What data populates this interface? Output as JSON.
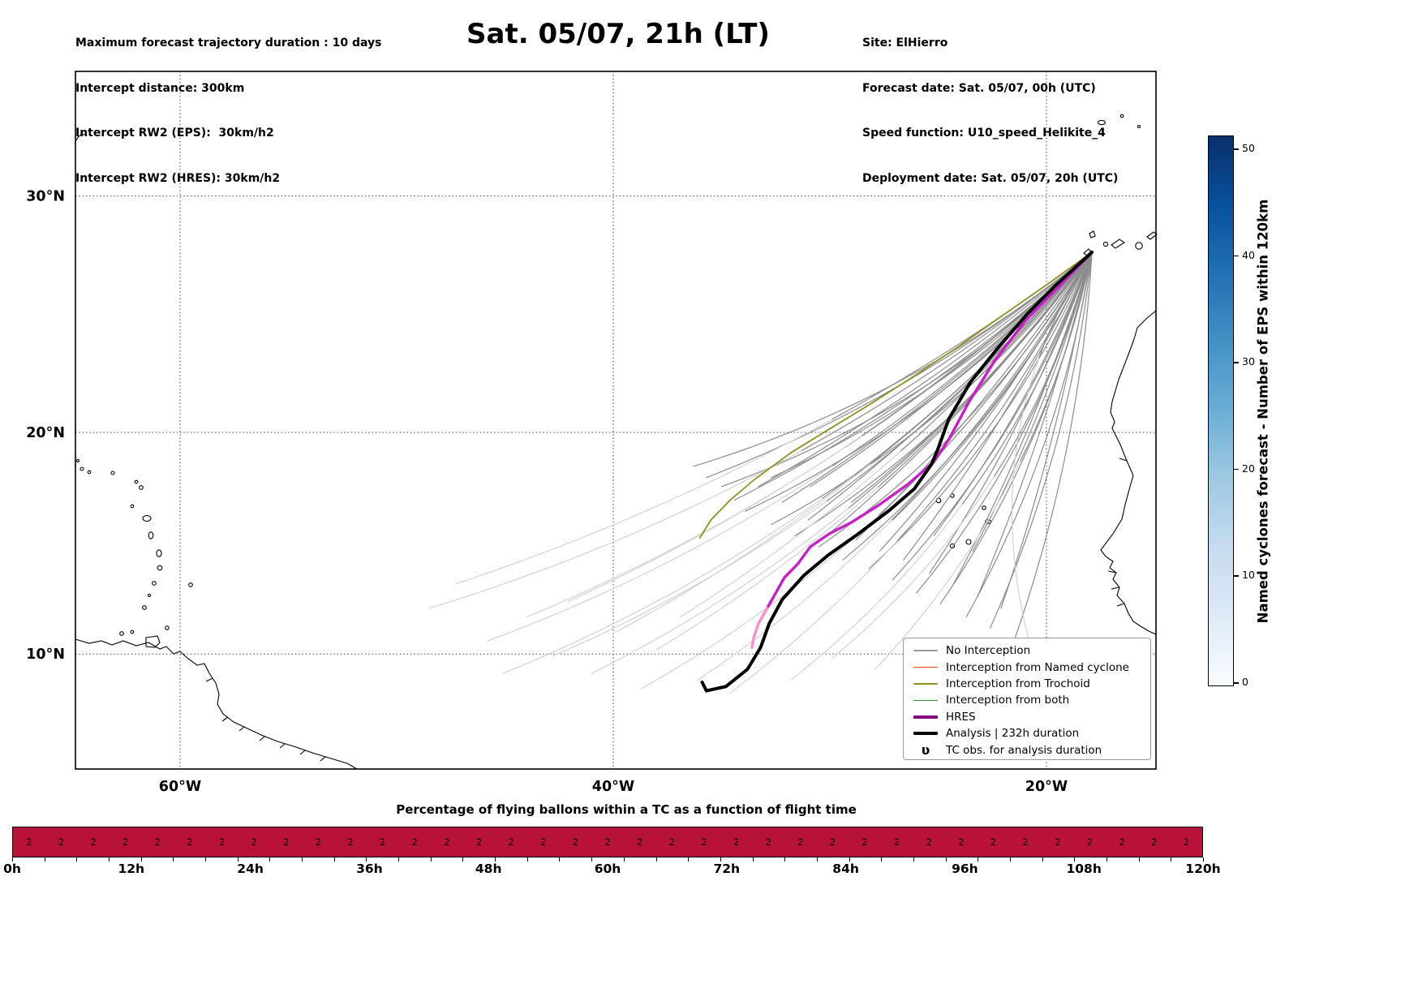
{
  "header": {
    "left_lines": [
      "Maximum forecast trajectory duration : 10 days",
      "Intercept distance: 300km",
      "Intercept RW2 (EPS):  30km/h2",
      "Intercept RW2 (HRES): 30km/h2"
    ],
    "title": "Sat. 05/07, 21h (LT)",
    "right_lines": [
      "Site: ElHierro",
      "Forecast date: Sat. 05/07, 00h (UTC)",
      "Speed function: U10_speed_Helikite_4",
      "Deployment date: Sat. 05/07, 20h (UTC)"
    ]
  },
  "chart_data": {
    "type": "line",
    "projection": "mercator",
    "map_extent_lon_w": [
      65,
      15
    ],
    "map_extent_lat": [
      4.7,
      35
    ],
    "x_ticks": [
      {
        "label": "60°W",
        "lon_w": 60
      },
      {
        "label": "40°W",
        "lon_w": 40
      },
      {
        "label": "20°W",
        "lon_w": 20
      }
    ],
    "y_ticks": [
      {
        "label": "30°N",
        "lat": 30
      },
      {
        "label": "20°N",
        "lat": 20
      },
      {
        "label": "10°N",
        "lat": 10
      }
    ],
    "deployment_site_lonw_lat": [
      17.9,
      27.7
    ],
    "series": {
      "analysis": {
        "label": "Analysis | 232h duration",
        "color": "#000000",
        "width": 4,
        "points": [
          [
            17.9,
            27.7
          ],
          [
            19.6,
            26.3
          ],
          [
            20.9,
            25.1
          ],
          [
            22.3,
            23.6
          ],
          [
            23.5,
            22.2
          ],
          [
            24.5,
            20.6
          ],
          [
            25.0,
            19.3
          ],
          [
            25.3,
            18.6
          ],
          [
            26.1,
            17.5
          ],
          [
            27.3,
            16.5
          ],
          [
            28.8,
            15.4
          ],
          [
            30.1,
            14.5
          ],
          [
            31.2,
            13.6
          ],
          [
            32.2,
            12.5
          ],
          [
            32.8,
            11.4
          ],
          [
            33.2,
            10.3
          ],
          [
            33.8,
            9.3
          ],
          [
            34.8,
            8.5
          ],
          [
            35.7,
            8.3
          ],
          [
            35.9,
            8.7
          ]
        ]
      },
      "hres": {
        "label": "HRES",
        "color": "#c81ec8",
        "tail_color": "#ff8ad6",
        "tail_start_index": 15,
        "width": 3.4,
        "points": [
          [
            17.9,
            27.7
          ],
          [
            19.5,
            26.2
          ],
          [
            21.0,
            24.8
          ],
          [
            22.4,
            23.1
          ],
          [
            23.6,
            21.3
          ],
          [
            24.5,
            19.7
          ],
          [
            25.2,
            18.7
          ],
          [
            26.4,
            17.7
          ],
          [
            27.7,
            16.8
          ],
          [
            29.0,
            16.0
          ],
          [
            30.0,
            15.5
          ],
          [
            30.9,
            14.9
          ],
          [
            31.5,
            14.1
          ],
          [
            32.1,
            13.5
          ],
          [
            32.5,
            12.8
          ],
          [
            32.9,
            12.1
          ],
          [
            33.3,
            11.4
          ],
          [
            33.5,
            10.8
          ],
          [
            33.6,
            10.3
          ]
        ]
      },
      "trochoid": {
        "label": "Interception from Trochoid",
        "color": "#8f8f22",
        "width": 1.8,
        "points": [
          [
            17.9,
            27.7
          ],
          [
            19.9,
            26.4
          ],
          [
            22.1,
            25.0
          ],
          [
            24.1,
            23.7
          ],
          [
            26.2,
            22.4
          ],
          [
            28.2,
            21.2
          ],
          [
            30.1,
            20.1
          ],
          [
            31.8,
            19.1
          ],
          [
            33.5,
            17.9
          ],
          [
            34.6,
            17.0
          ],
          [
            35.5,
            16.1
          ],
          [
            36.0,
            15.3
          ]
        ]
      },
      "ensemble": {
        "label": "No Interception",
        "dark_color": "#8c8c8c",
        "light_color": "#d2d2d2",
        "width": 1.2,
        "start": [
          17.9,
          27.7
        ],
        "members_lonw_lat_sag_darkfrac": [
          [
            36.3,
            18.5,
            0.1,
            1
          ],
          [
            35.7,
            18.0,
            0.08,
            1
          ],
          [
            35.0,
            17.6,
            0.11,
            1
          ],
          [
            34.4,
            17.0,
            0.07,
            1
          ],
          [
            33.9,
            16.5,
            0.1,
            1
          ],
          [
            33.3,
            17.6,
            0.05,
            1
          ],
          [
            32.7,
            15.9,
            0.11,
            1
          ],
          [
            32.2,
            16.9,
            0.06,
            1
          ],
          [
            31.6,
            15.4,
            0.1,
            1
          ],
          [
            31.0,
            16.1,
            0.05,
            1
          ],
          [
            30.5,
            14.9,
            0.11,
            1
          ],
          [
            29.9,
            15.6,
            0.06,
            1
          ],
          [
            29.4,
            14.3,
            0.1,
            1
          ],
          [
            28.8,
            15.2,
            0.05,
            1
          ],
          [
            28.2,
            13.9,
            0.11,
            1
          ],
          [
            27.7,
            14.7,
            0.06,
            1
          ],
          [
            27.1,
            13.4,
            0.1,
            1
          ],
          [
            26.6,
            14.3,
            0.05,
            1
          ],
          [
            26.0,
            12.8,
            0.11,
            1
          ],
          [
            25.4,
            13.7,
            0.06,
            1
          ],
          [
            24.9,
            12.3,
            0.1,
            1
          ],
          [
            24.3,
            13.2,
            0.05,
            1
          ],
          [
            23.7,
            11.7,
            0.09,
            1
          ],
          [
            23.2,
            12.6,
            0.04,
            1
          ],
          [
            22.6,
            11.2,
            0.08,
            1
          ],
          [
            22.1,
            12.1,
            0.04,
            1
          ],
          [
            21.5,
            10.6,
            0.07,
            1
          ],
          [
            27.1,
            16.1,
            0.08,
            1
          ],
          [
            29.0,
            16.9,
            0.07,
            1
          ],
          [
            30.9,
            17.6,
            0.06,
            1
          ],
          [
            32.7,
            18.0,
            0.09,
            1
          ],
          [
            25.2,
            15.4,
            0.07,
            1
          ],
          [
            23.4,
            14.7,
            0.06,
            1
          ],
          [
            48.5,
            12.1,
            0.1,
            0.45
          ],
          [
            47.3,
            13.2,
            0.08,
            0.42
          ],
          [
            45.8,
            10.6,
            0.11,
            0.48
          ],
          [
            45.1,
            9.1,
            0.12,
            0.5
          ],
          [
            44.0,
            11.7,
            0.09,
            0.45
          ],
          [
            42.8,
            9.9,
            0.12,
            0.52
          ],
          [
            42.1,
            12.4,
            0.08,
            0.45
          ],
          [
            41.0,
            9.1,
            0.12,
            0.55
          ],
          [
            39.9,
            11.0,
            0.09,
            0.5
          ],
          [
            38.7,
            8.4,
            0.13,
            0.55
          ],
          [
            38.0,
            10.2,
            0.1,
            0.52
          ],
          [
            36.9,
            11.7,
            0.08,
            0.5
          ],
          [
            36.1,
            8.8,
            0.12,
            0.58
          ],
          [
            34.6,
            8.2,
            0.12,
            0.6
          ],
          [
            20.8,
            10.6,
            -0.22,
            0.3
          ],
          [
            29.9,
            9.8,
            0.16,
            0.5
          ],
          [
            27.9,
            9.3,
            0.14,
            0.45
          ],
          [
            31.8,
            8.8,
            0.15,
            0.55
          ]
        ]
      }
    },
    "legend": [
      {
        "label": "No Interception",
        "kind": "line",
        "color": "#999999",
        "lw": 1.5
      },
      {
        "label": "Interception from Named cyclone",
        "kind": "line",
        "color": "#ff4500",
        "lw": 1.5
      },
      {
        "label": "Interception from Trochoid",
        "kind": "line",
        "color": "#8f8f22",
        "lw": 1.5
      },
      {
        "label": "Interception from both",
        "kind": "line",
        "color": "#2e8b2e",
        "lw": 1.5
      },
      {
        "label": "HRES",
        "kind": "line",
        "color": "#800080",
        "lw": 3.5
      },
      {
        "label": "Analysis | 232h duration",
        "kind": "line",
        "color": "#000000",
        "lw": 3.5
      },
      {
        "label": "TC obs. for analysis duration",
        "kind": "marker",
        "symbol": "ʋ",
        "color": "#000000"
      }
    ],
    "colorbar": {
      "label": "Named cyclones forecast - Number of EPS within 120km",
      "ticks": [
        0,
        10,
        20,
        30,
        40,
        50
      ],
      "vmin": 0,
      "vmax": 51.2,
      "gradient_stops": [
        "#f7fbff",
        "#deebf7",
        "#c6dbef",
        "#9ecae1",
        "#6baed6",
        "#4292c6",
        "#2171b5",
        "#08519c",
        "#08306b"
      ]
    },
    "bottom_strip": {
      "title": "Percentage of flying ballons within a TC as a function of flight time",
      "bar_color": "#b81238",
      "values": [
        2,
        2,
        2,
        2,
        2,
        2,
        2,
        2,
        2,
        2,
        2,
        2,
        2,
        2,
        2,
        2,
        2,
        2,
        2,
        2,
        2,
        2,
        2,
        2,
        2,
        2,
        2,
        2,
        2,
        2,
        2,
        2,
        2,
        2,
        2,
        2,
        2
      ],
      "axis_tick_labels": [
        "0h",
        "12h",
        "24h",
        "36h",
        "48h",
        "60h",
        "72h",
        "84h",
        "96h",
        "108h",
        "120h"
      ]
    }
  }
}
